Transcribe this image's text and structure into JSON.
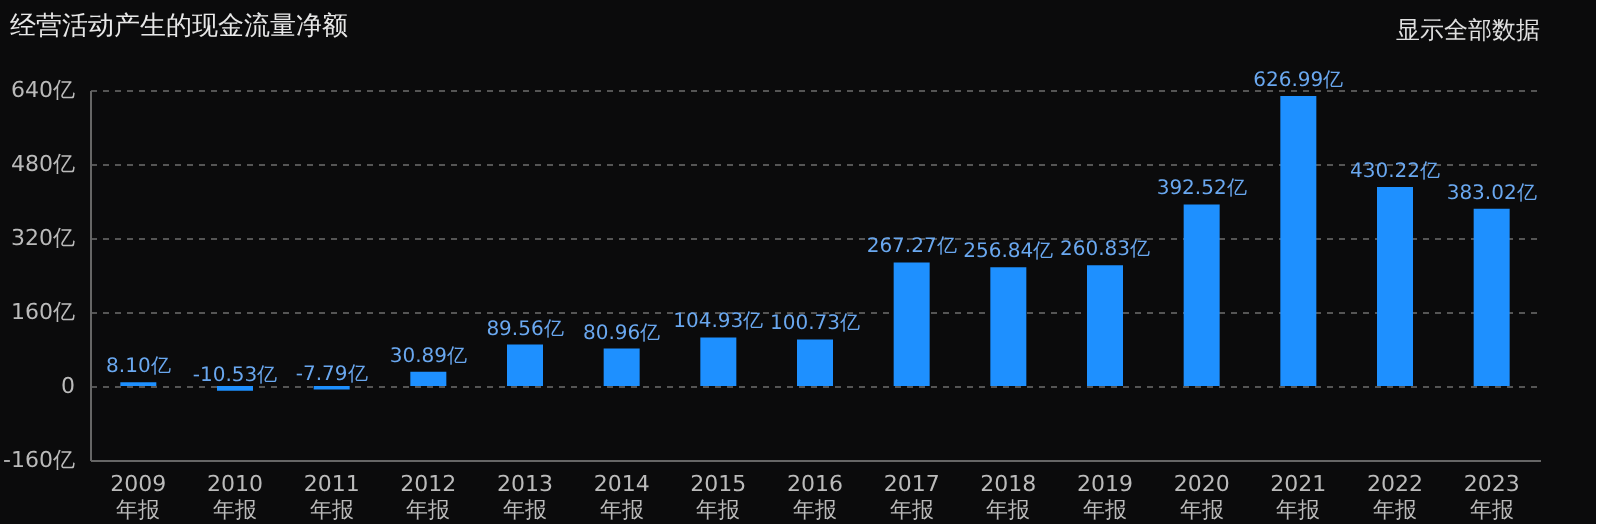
{
  "chart_data": {
    "type": "bar",
    "title": "经营活动产生的现金流量净额",
    "annotations": [
      "显示全部数据"
    ],
    "categories": [
      "2009\n年报",
      "2010\n年报",
      "2011\n年报",
      "2012\n年报",
      "2013\n年报",
      "2014\n年报",
      "2015\n年报",
      "2016\n年报",
      "2017\n年报",
      "2018\n年报",
      "2019\n年报",
      "2020\n年报",
      "2021\n年报",
      "2022\n年报",
      "2023\n年报"
    ],
    "values": [
      8.1,
      -10.53,
      -7.79,
      30.89,
      89.56,
      80.96,
      104.93,
      100.73,
      267.27,
      256.84,
      260.83,
      392.52,
      626.99,
      430.22,
      383.02
    ],
    "value_labels": [
      "8.10亿",
      "-10.53亿",
      "-7.79亿",
      "30.89亿",
      "89.56亿",
      "80.96亿",
      "104.93亿",
      "100.73亿",
      "267.27亿",
      "256.84亿",
      "260.83亿",
      "392.52亿",
      "626.99亿",
      "430.22亿",
      "383.02亿"
    ],
    "color": "#1e90ff",
    "ylim": [
      -160,
      640
    ],
    "yticks": [
      {
        "value": -160,
        "label": "-160亿"
      },
      0,
      {
        "value": 160,
        "label": "160亿"
      },
      {
        "value": 320,
        "label": "320亿"
      },
      {
        "value": 480,
        "label": "480亿"
      },
      {
        "value": 640,
        "label": "640亿"
      }
    ],
    "grid": "y"
  }
}
